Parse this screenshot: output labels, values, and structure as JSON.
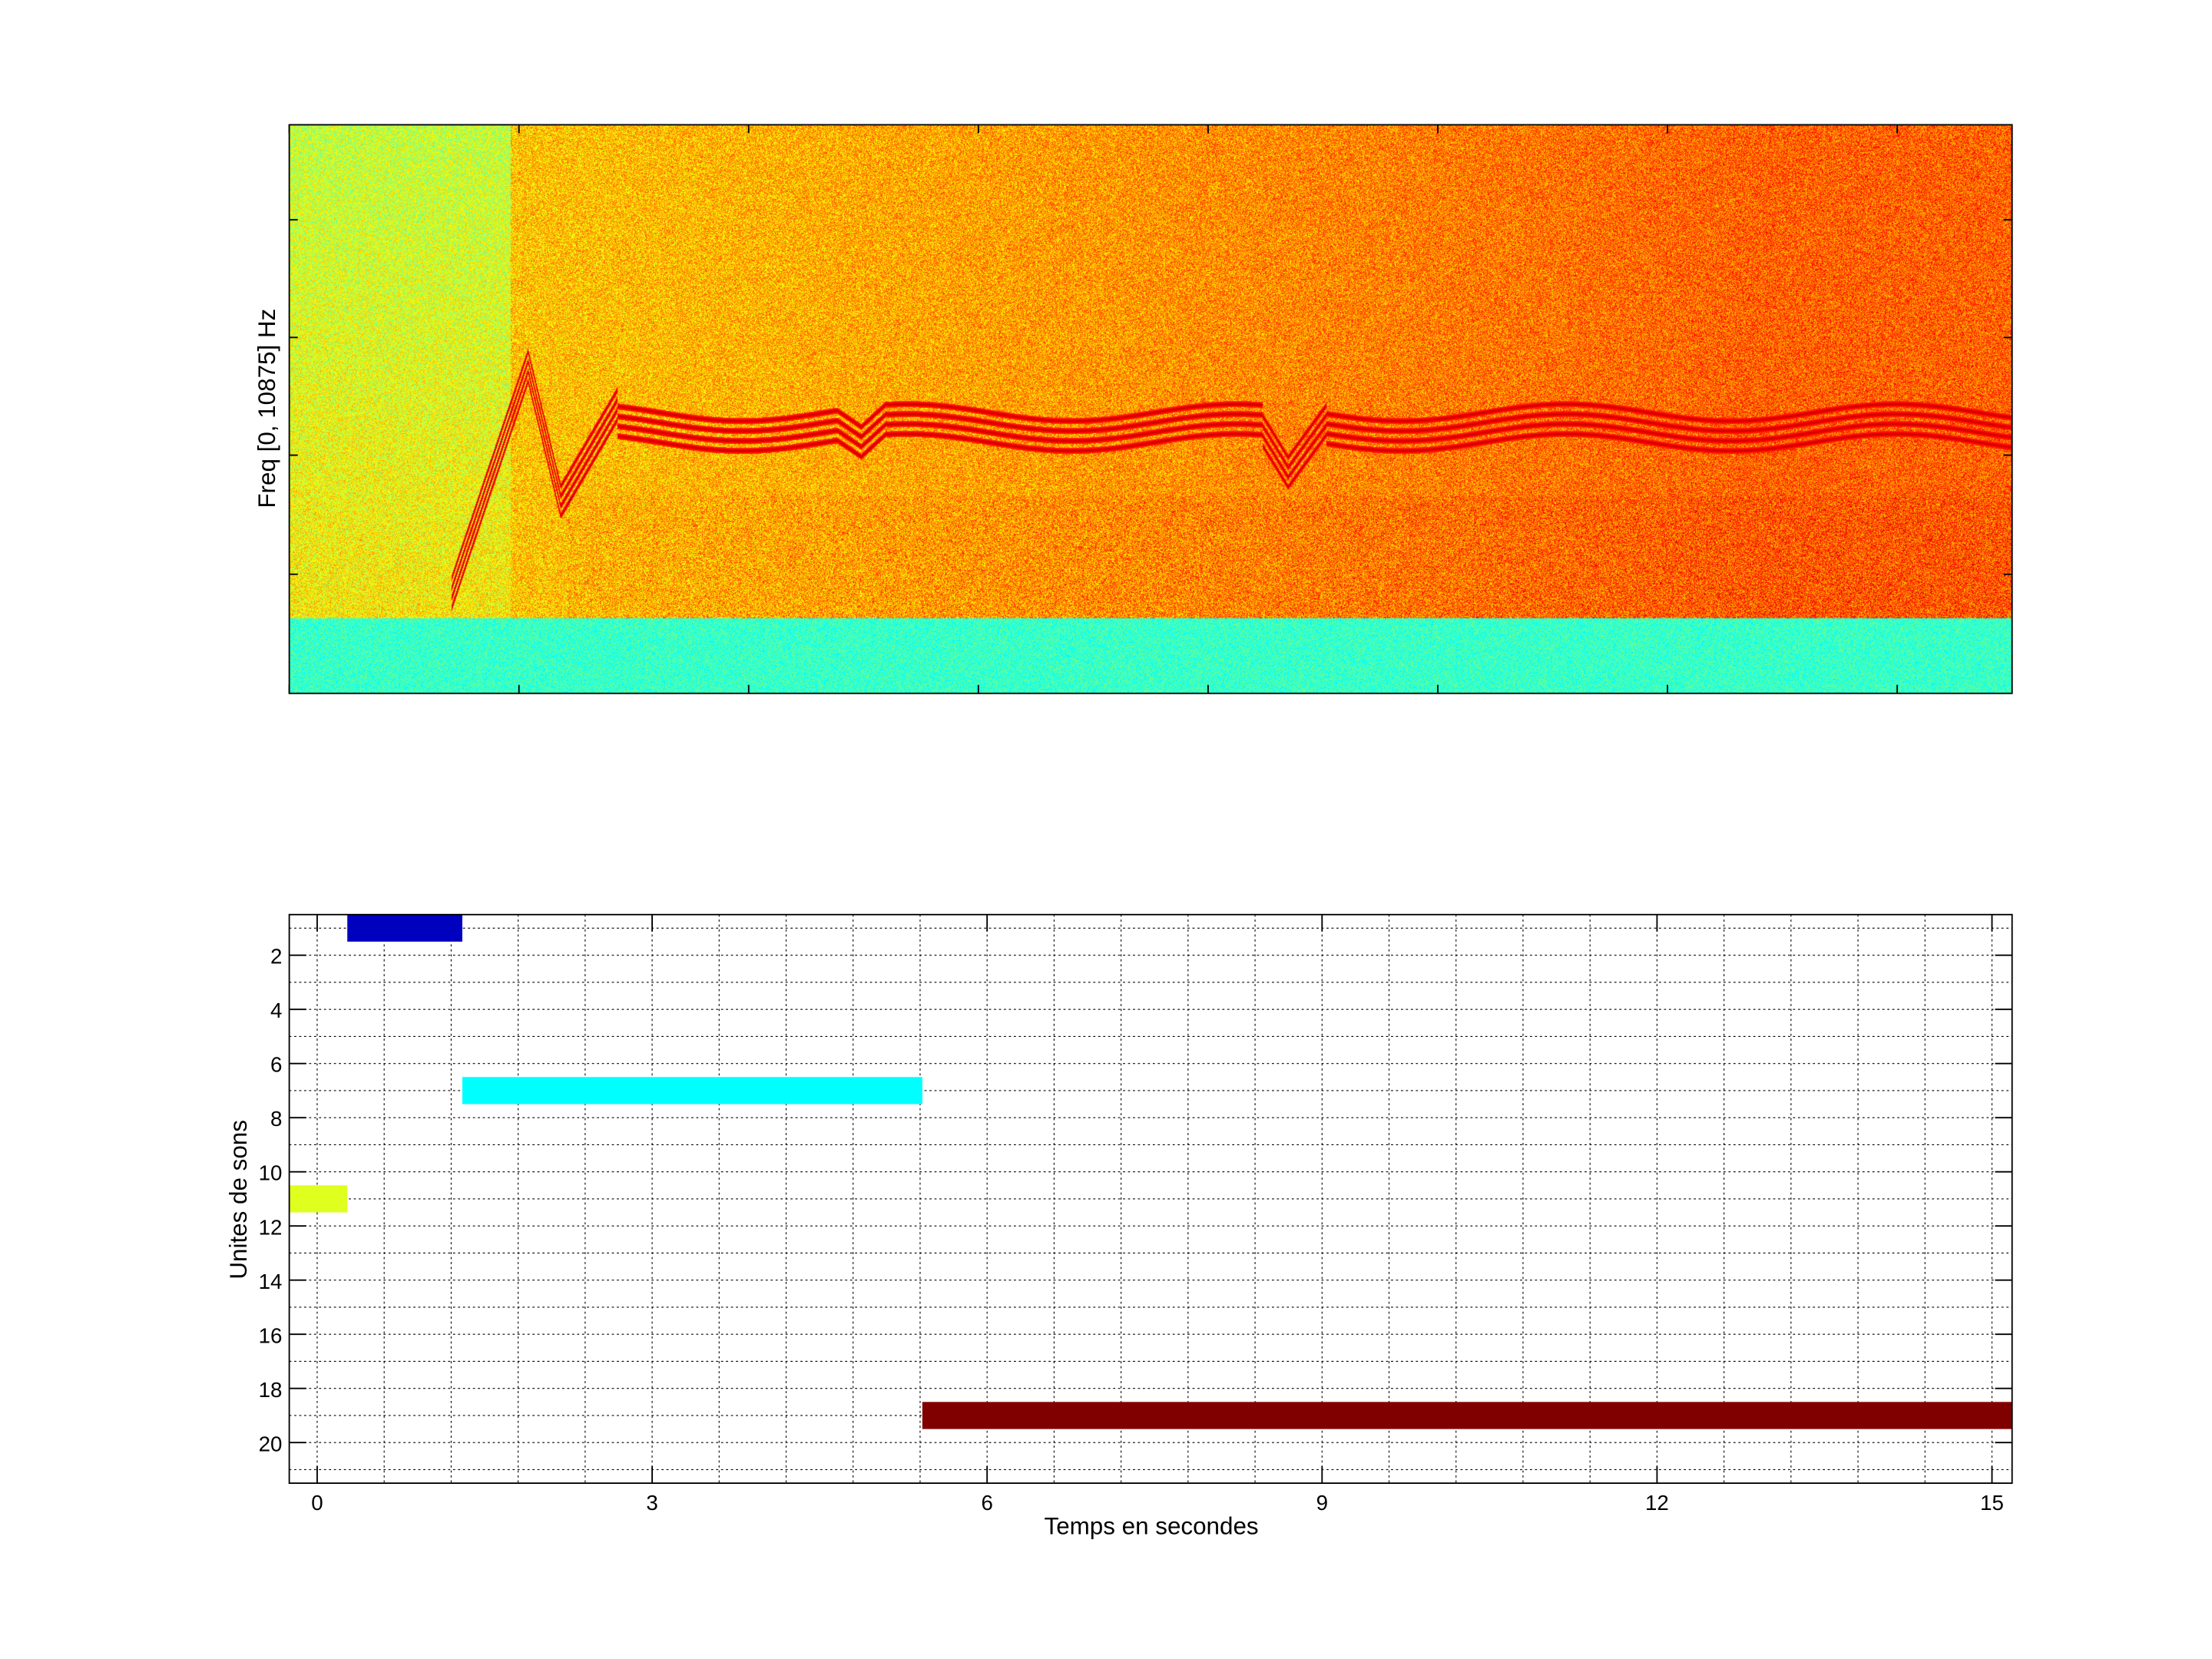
{
  "chart_data": [
    {
      "type": "heatmap",
      "title": "",
      "xlabel": "",
      "ylabel": "Freq [0, 10875] Hz",
      "xlim": [
        -0.25,
        15.18
      ],
      "ylim": [
        0,
        10875
      ],
      "colormap": "jet"
    },
    {
      "type": "bar",
      "orientation": "horizontal-segments",
      "xlabel": "Temps en secondes",
      "ylabel": "Unites de sons",
      "xlim": [
        -0.25,
        15.18
      ],
      "ylim": [
        0.5,
        21.5
      ],
      "y_reversed": true,
      "grid": true,
      "xticks": [
        "0",
        "3",
        "6",
        "9",
        "12",
        "15"
      ],
      "xtick_values": [
        0,
        3,
        6,
        9,
        12,
        15
      ],
      "yticks": [
        "2",
        "4",
        "6",
        "8",
        "10",
        "12",
        "14",
        "16",
        "18",
        "20"
      ],
      "ytick_values": [
        2,
        4,
        6,
        8,
        10,
        12,
        14,
        16,
        18,
        20
      ],
      "segments": [
        {
          "unit": 1,
          "start": 0.27,
          "end": 1.3,
          "color": "#0000bf"
        },
        {
          "unit": 7,
          "start": 1.3,
          "end": 5.42,
          "color": "#00ffff"
        },
        {
          "unit": 11,
          "start": -0.25,
          "end": 0.27,
          "color": "#dfff1f"
        },
        {
          "unit": 19,
          "start": 5.42,
          "end": 15.18,
          "color": "#800000"
        }
      ]
    }
  ]
}
